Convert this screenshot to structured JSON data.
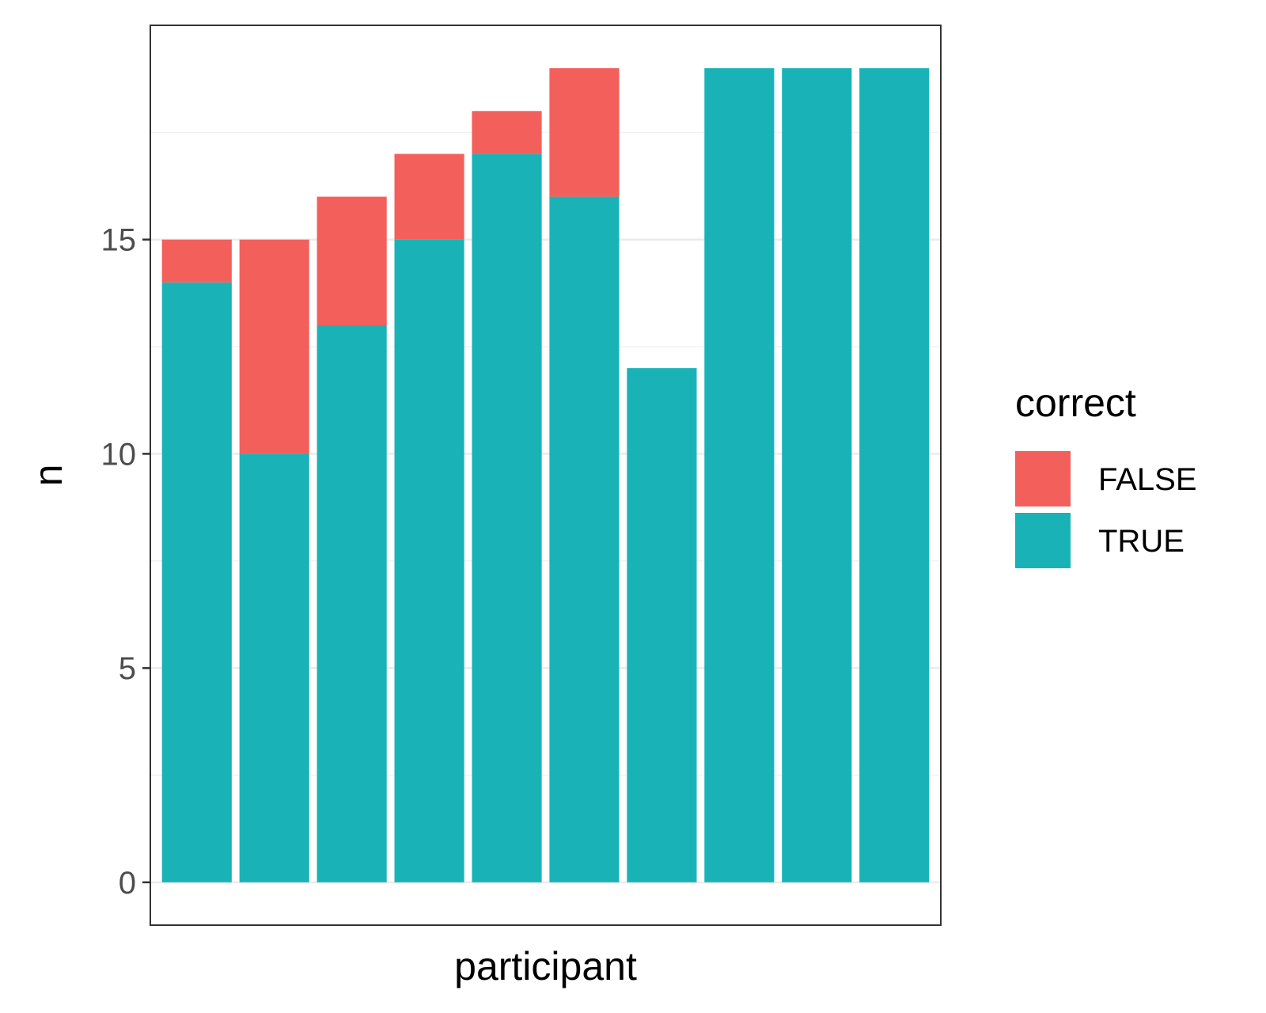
{
  "chart_data": {
    "type": "bar",
    "stacked": true,
    "title": "",
    "xlabel": "participant",
    "ylabel": "n",
    "ylim": [
      -1.0,
      20.0
    ],
    "yticks": [
      0,
      5,
      10,
      15
    ],
    "grid": true,
    "legend_position": "right",
    "legend_title": "correct",
    "categories": [
      "",
      "",
      "",
      "",
      "",
      "",
      "",
      "",
      "",
      ""
    ],
    "series": [
      {
        "name": "TRUE",
        "color": "#19B3B7",
        "values": [
          14,
          10,
          13,
          15,
          17,
          16,
          12,
          19,
          19,
          19
        ]
      },
      {
        "name": "FALSE",
        "color": "#F3605C",
        "values": [
          1,
          5,
          3,
          2,
          1,
          3,
          0,
          0,
          0,
          0
        ]
      }
    ],
    "legend_order": [
      "FALSE",
      "TRUE"
    ],
    "colors": {
      "panel_border": "#333333",
      "grid_major": "#EBEBEB",
      "grid_minor": "#F2F2F2",
      "tick_mark": "#333333",
      "background": "#FFFFFF"
    }
  }
}
